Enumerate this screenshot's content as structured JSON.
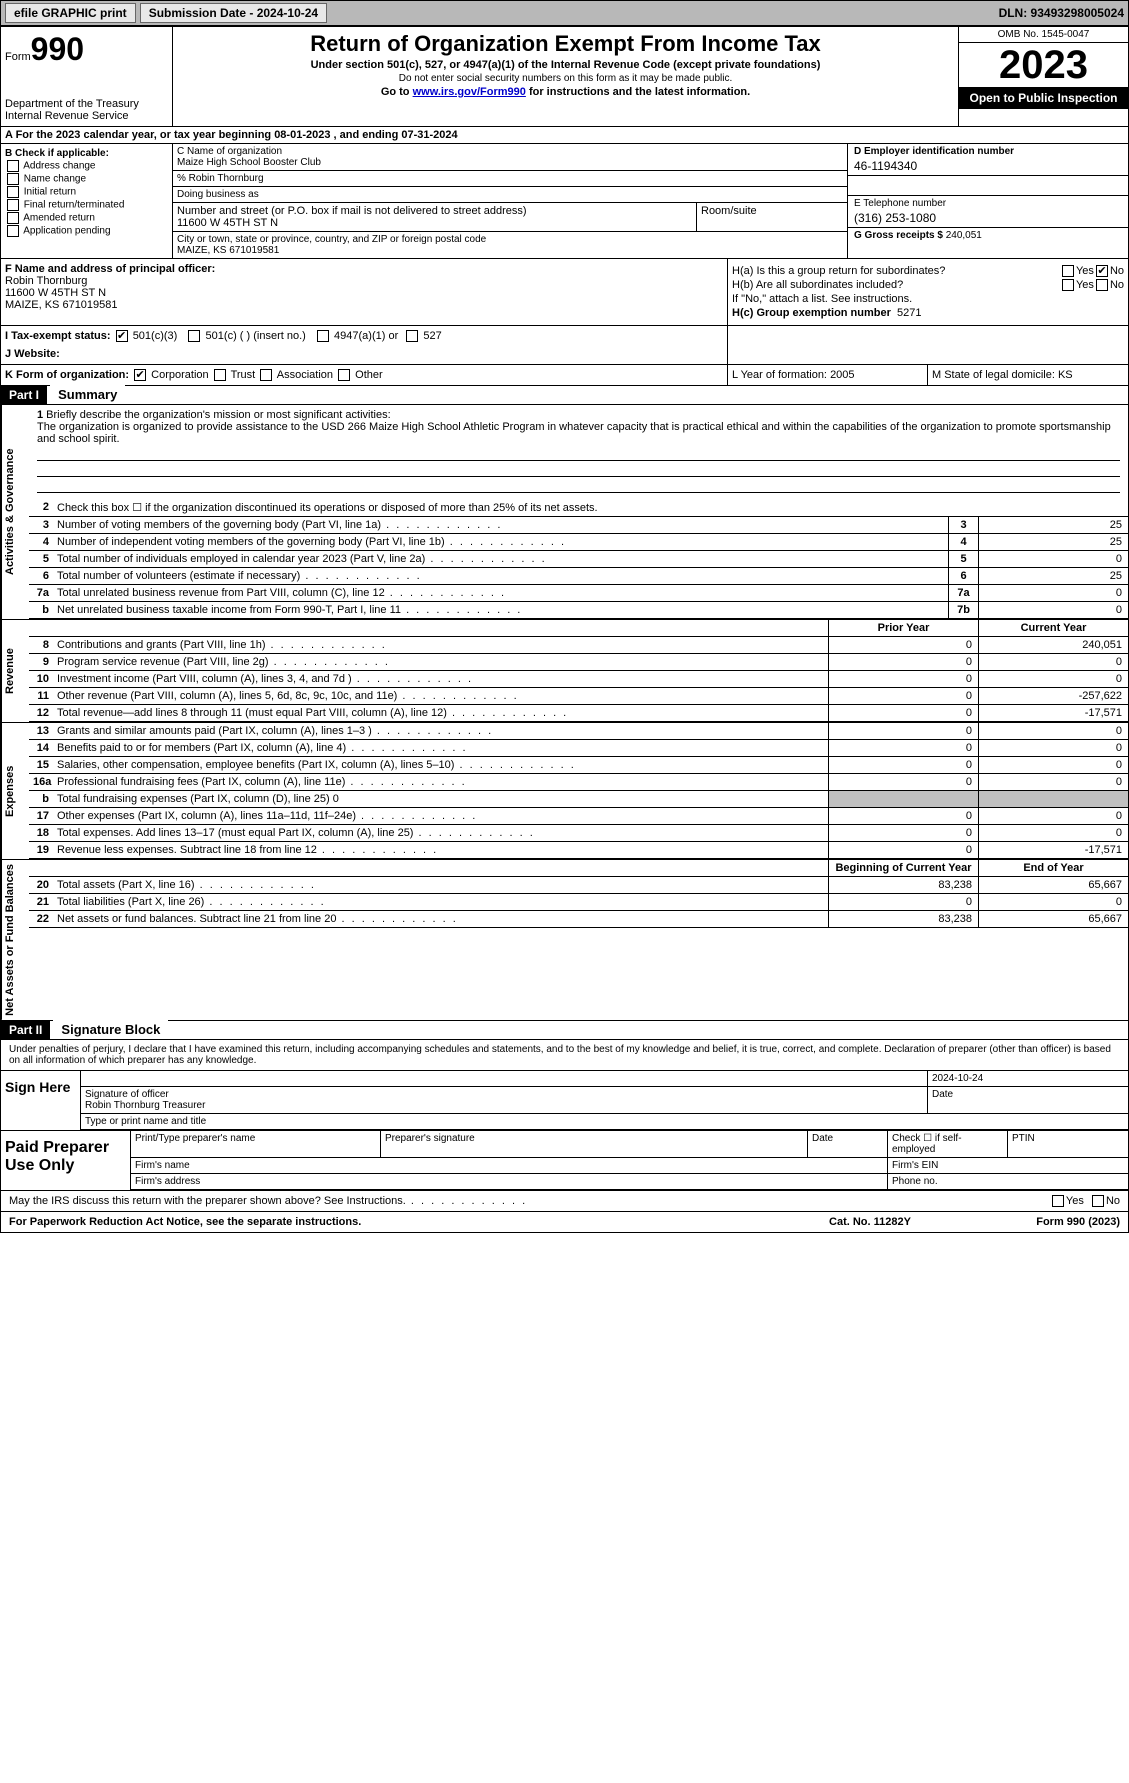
{
  "topbar": {
    "efile": "efile GRAPHIC print",
    "submission": "Submission Date - 2024-10-24",
    "dln": "DLN: 93493298005024"
  },
  "header": {
    "form_label": "Form",
    "form_num": "990",
    "dept": "Department of the Treasury Internal Revenue Service",
    "title": "Return of Organization Exempt From Income Tax",
    "sub1": "Under section 501(c), 527, or 4947(a)(1) of the Internal Revenue Code (except private foundations)",
    "sub2": "Do not enter social security numbers on this form as it may be made public.",
    "sub3_pre": "Go to ",
    "sub3_link": "www.irs.gov/Form990",
    "sub3_post": " for instructions and the latest information.",
    "omb": "OMB No. 1545-0047",
    "year": "2023",
    "inspect": "Open to Public Inspection"
  },
  "row_a": "A For the 2023 calendar year, or tax year beginning 08-01-2023   , and ending 07-31-2024",
  "col_b": {
    "title": "B Check if applicable:",
    "opts": [
      "Address change",
      "Name change",
      "Initial return",
      "Final return/terminated",
      "Amended return",
      "Application pending"
    ]
  },
  "col_c": {
    "name_lbl": "C Name of organization",
    "name": "Maize High School Booster Club",
    "care_of": "% Robin Thornburg",
    "dba_lbl": "Doing business as",
    "addr_lbl": "Number and street (or P.O. box if mail is not delivered to street address)",
    "addr": "11600 W 45TH ST N",
    "room_lbl": "Room/suite",
    "city_lbl": "City or town, state or province, country, and ZIP or foreign postal code",
    "city": "MAIZE, KS  671019581"
  },
  "col_d": {
    "ein_lbl": "D Employer identification number",
    "ein": "46-1194340",
    "phone_lbl": "E Telephone number",
    "phone": "(316) 253-1080",
    "gross_lbl": "G Gross receipts $",
    "gross": "240,051"
  },
  "col_f": {
    "lbl": "F  Name and address of principal officer:",
    "name": "Robin Thornburg",
    "addr1": "11600 W 45TH ST N",
    "addr2": "MAIZE, KS  671019581"
  },
  "col_h": {
    "ha": "H(a)  Is this a group return for subordinates?",
    "hb": "H(b)  Are all subordinates included?",
    "hb_note": "If \"No,\" attach a list. See instructions.",
    "hc": "H(c)  Group exemption number",
    "hc_val": "5271"
  },
  "row_i": {
    "lbl": "I    Tax-exempt status:",
    "o1": "501(c)(3)",
    "o2": "501(c) (  ) (insert no.)",
    "o3": "4947(a)(1) or",
    "o4": "527"
  },
  "row_j": "J   Website:",
  "row_k": {
    "k1": "K Form of organization:",
    "k1_opts": [
      "Corporation",
      "Trust",
      "Association",
      "Other"
    ],
    "k2_lbl": "L Year of formation:",
    "k2_val": "2005",
    "k3_lbl": "M State of legal domicile:",
    "k3_val": "KS"
  },
  "part1": {
    "hdr": "Part I",
    "title": "Summary",
    "sections": [
      {
        "label": "Activities & Governance",
        "rows": [
          {
            "num": "1",
            "txt": "Briefly describe the organization's mission or most significant activities:",
            "mission": "The organization is organized to provide assistance to the USD 266 Maize High School Athletic Program in whatever capacity that is practical ethical and within the capabilities of the organization to promote sportsmanship and school spirit."
          },
          {
            "num": "2",
            "txt": "Check this box ☐ if the organization discontinued its operations or disposed of more than 25% of its net assets."
          },
          {
            "num": "3",
            "txt": "Number of voting members of the governing body (Part VI, line 1a)",
            "box": "3",
            "v2": "25"
          },
          {
            "num": "4",
            "txt": "Number of independent voting members of the governing body (Part VI, line 1b)",
            "box": "4",
            "v2": "25"
          },
          {
            "num": "5",
            "txt": "Total number of individuals employed in calendar year 2023 (Part V, line 2a)",
            "box": "5",
            "v2": "0"
          },
          {
            "num": "6",
            "txt": "Total number of volunteers (estimate if necessary)",
            "box": "6",
            "v2": "25"
          },
          {
            "num": "7a",
            "txt": "Total unrelated business revenue from Part VIII, column (C), line 12",
            "box": "7a",
            "v2": "0"
          },
          {
            "num": "b",
            "txt": "Net unrelated business taxable income from Form 990-T, Part I, line 11",
            "box": "7b",
            "v2": "0"
          }
        ]
      },
      {
        "label": "Revenue",
        "header": {
          "c1": "Prior Year",
          "c2": "Current Year"
        },
        "rows": [
          {
            "num": "8",
            "txt": "Contributions and grants (Part VIII, line 1h)",
            "v1": "0",
            "v2": "240,051"
          },
          {
            "num": "9",
            "txt": "Program service revenue (Part VIII, line 2g)",
            "v1": "0",
            "v2": "0"
          },
          {
            "num": "10",
            "txt": "Investment income (Part VIII, column (A), lines 3, 4, and 7d )",
            "v1": "0",
            "v2": "0"
          },
          {
            "num": "11",
            "txt": "Other revenue (Part VIII, column (A), lines 5, 6d, 8c, 9c, 10c, and 11e)",
            "v1": "0",
            "v2": "-257,622"
          },
          {
            "num": "12",
            "txt": "Total revenue—add lines 8 through 11 (must equal Part VIII, column (A), line 12)",
            "v1": "0",
            "v2": "-17,571"
          }
        ]
      },
      {
        "label": "Expenses",
        "rows": [
          {
            "num": "13",
            "txt": "Grants and similar amounts paid (Part IX, column (A), lines 1–3 )",
            "v1": "0",
            "v2": "0"
          },
          {
            "num": "14",
            "txt": "Benefits paid to or for members (Part IX, column (A), line 4)",
            "v1": "0",
            "v2": "0"
          },
          {
            "num": "15",
            "txt": "Salaries, other compensation, employee benefits (Part IX, column (A), lines 5–10)",
            "v1": "0",
            "v2": "0"
          },
          {
            "num": "16a",
            "txt": "Professional fundraising fees (Part IX, column (A), line 11e)",
            "v1": "0",
            "v2": "0"
          },
          {
            "num": "b",
            "txt": "Total fundraising expenses (Part IX, column (D), line 25) 0",
            "grey": true
          },
          {
            "num": "17",
            "txt": "Other expenses (Part IX, column (A), lines 11a–11d, 11f–24e)",
            "v1": "0",
            "v2": "0"
          },
          {
            "num": "18",
            "txt": "Total expenses. Add lines 13–17 (must equal Part IX, column (A), line 25)",
            "v1": "0",
            "v2": "0"
          },
          {
            "num": "19",
            "txt": "Revenue less expenses. Subtract line 18 from line 12",
            "v1": "0",
            "v2": "-17,571"
          }
        ]
      },
      {
        "label": "Net Assets or Fund Balances",
        "header": {
          "c1": "Beginning of Current Year",
          "c2": "End of Year"
        },
        "rows": [
          {
            "num": "20",
            "txt": "Total assets (Part X, line 16)",
            "v1": "83,238",
            "v2": "65,667"
          },
          {
            "num": "21",
            "txt": "Total liabilities (Part X, line 26)",
            "v1": "0",
            "v2": "0"
          },
          {
            "num": "22",
            "txt": "Net assets or fund balances. Subtract line 21 from line 20",
            "v1": "83,238",
            "v2": "65,667"
          }
        ]
      }
    ]
  },
  "part2": {
    "hdr": "Part II",
    "title": "Signature Block",
    "decl": "Under penalties of perjury, I declare that I have examined this return, including accompanying schedules and statements, and to the best of my knowledge and belief, it is true, correct, and complete. Declaration of preparer (other than officer) is based on all information of which preparer has any knowledge."
  },
  "sign": {
    "here": "Sign Here",
    "sig_lbl": "Signature of officer",
    "name": "Robin Thornburg  Treasurer",
    "type_lbl": "Type or print name and title",
    "date_lbl": "Date",
    "date": "2024-10-24"
  },
  "paid": {
    "title": "Paid Preparer Use Only",
    "c1": "Print/Type preparer's name",
    "c2": "Preparer's signature",
    "c3": "Date",
    "c4": "Check ☐ if self-employed",
    "c5": "PTIN",
    "firm_name": "Firm's name",
    "firm_ein": "Firm's EIN",
    "firm_addr": "Firm's address",
    "phone": "Phone no."
  },
  "footer": {
    "discuss": "May the IRS discuss this return with the preparer shown above? See Instructions.",
    "pra": "For Paperwork Reduction Act Notice, see the separate instructions.",
    "cat": "Cat. No. 11282Y",
    "form": "Form 990 (2023)"
  }
}
